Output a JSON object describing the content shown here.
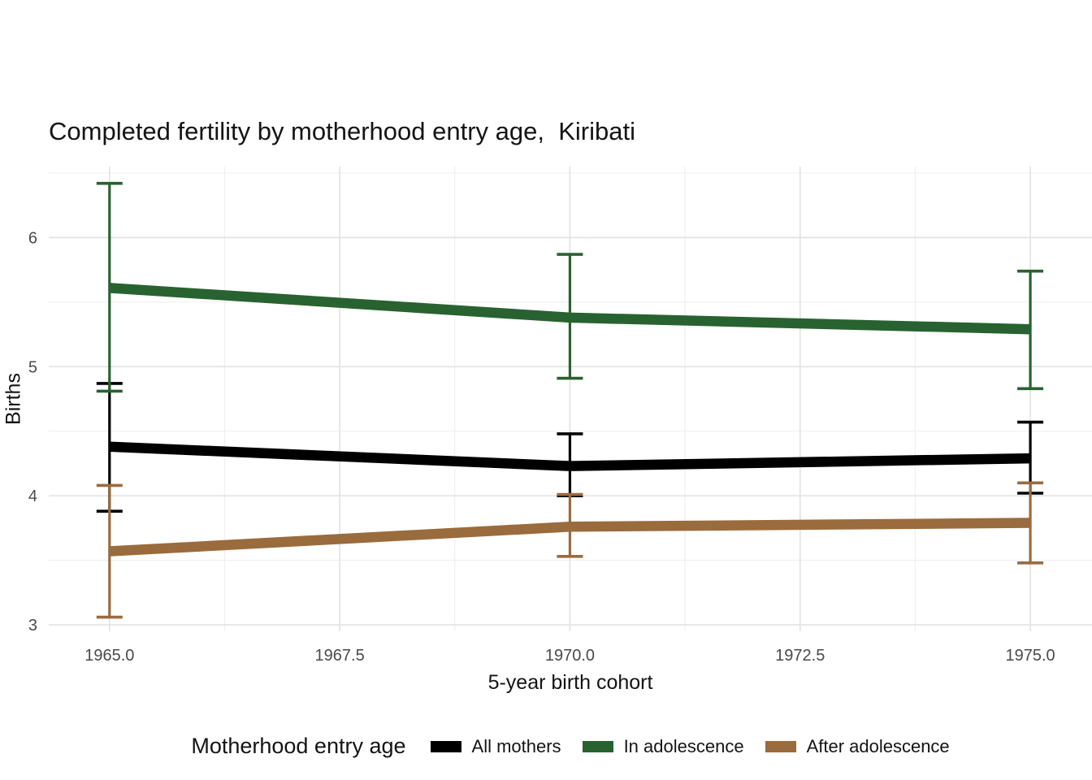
{
  "chart_data": {
    "type": "line",
    "title": "Completed fertility by motherhood entry age,  Kiribati",
    "xlabel": "5-year birth cohort",
    "ylabel": "Births",
    "legend_title": "Motherhood entry age",
    "legend_position": "bottom",
    "grid": true,
    "xlim": [
      1964.34,
      1975.67
    ],
    "ylim": [
      2.95,
      6.55
    ],
    "x_ticks": [
      {
        "label": "1965.0",
        "value": 1965
      },
      {
        "label": "1967.5",
        "value": 1967.5
      },
      {
        "label": "1970.0",
        "value": 1970
      },
      {
        "label": "1972.5",
        "value": 1972.5
      },
      {
        "label": "1975.0",
        "value": 1975
      }
    ],
    "y_ticks": [
      {
        "label": "3",
        "value": 3
      },
      {
        "label": "4",
        "value": 4
      },
      {
        "label": "5",
        "value": 5
      },
      {
        "label": "6",
        "value": 6
      }
    ],
    "series": [
      {
        "name": "All mothers",
        "color": "#000000",
        "x": [
          1965,
          1970,
          1975
        ],
        "y": [
          4.38,
          4.23,
          4.29
        ],
        "ci_low": [
          3.88,
          4.0,
          4.02
        ],
        "ci_high": [
          4.87,
          4.48,
          4.57
        ]
      },
      {
        "name": "In adolescence",
        "color": "#286230",
        "x": [
          1965,
          1970,
          1975
        ],
        "y": [
          5.61,
          5.38,
          5.29
        ],
        "ci_low": [
          4.81,
          4.91,
          4.83
        ],
        "ci_high": [
          6.42,
          5.87,
          5.74
        ]
      },
      {
        "name": "After adolescence",
        "color": "#9a6b3d",
        "x": [
          1965,
          1970,
          1975
        ],
        "y": [
          3.57,
          3.76,
          3.79
        ],
        "ci_low": [
          3.06,
          3.53,
          3.48
        ],
        "ci_high": [
          4.08,
          4.01,
          4.1
        ]
      }
    ],
    "style": {
      "major_grid_color": "#e3e3e3",
      "minor_grid_color": "#f0f0f0",
      "tick_label_color": "#4a4a4a"
    }
  }
}
